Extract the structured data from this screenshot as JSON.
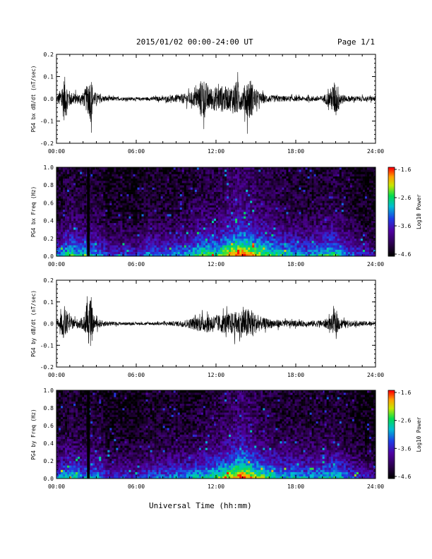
{
  "header": {
    "title": "2015/01/02  00:00-24:00 UT",
    "page": "Page 1/1"
  },
  "x_axis_label": "Universal Time (hh:mm)",
  "colors": {
    "trace": "#000000",
    "background": "#ffffff"
  },
  "chart_data": [
    {
      "type": "line",
      "ylabel": "PG4 bx dB/dt (nT/sec)",
      "xlim": [
        0,
        24
      ],
      "ylim": [
        -0.2,
        0.2
      ],
      "x_tick_labels": [
        "00:00",
        "06:00",
        "12:00",
        "18:00",
        "24:00"
      ],
      "y_tick_labels": [
        "0.2",
        "0.1",
        "0.0",
        "-0.1",
        "-0.2"
      ],
      "y_ticks": [
        0.2,
        0.1,
        0.0,
        -0.1,
        -0.2
      ],
      "envelope": {
        "hours": [
          0,
          0.3,
          0.6,
          1.0,
          1.5,
          2.0,
          2.5,
          2.6,
          2.8,
          3.5,
          4.5,
          6,
          7,
          8,
          9,
          10,
          10.5,
          11,
          11.5,
          12,
          12.5,
          13,
          13.5,
          14,
          14.5,
          15,
          15.5,
          16,
          17,
          18,
          19,
          20,
          20.5,
          21,
          21.3,
          21.6,
          22,
          23,
          24
        ],
        "amplitude": [
          0.02,
          0.08,
          0.19,
          0.06,
          0.04,
          0.05,
          0.16,
          0.2,
          0.06,
          0.025,
          0.015,
          0.012,
          0.015,
          0.02,
          0.03,
          0.05,
          0.07,
          0.19,
          0.09,
          0.1,
          0.11,
          0.09,
          0.15,
          0.08,
          0.19,
          0.07,
          0.04,
          0.03,
          0.025,
          0.02,
          0.02,
          0.025,
          0.06,
          0.16,
          0.08,
          0.03,
          0.025,
          0.02,
          0.02
        ]
      }
    },
    {
      "type": "heatmap",
      "ylabel": "PG4 bx Freq (Hz)",
      "colorbar_label": "Log10 Power",
      "colorbar_ticks": [
        "-1.6",
        "-2.6",
        "-3.6",
        "-4.6"
      ],
      "colorbar_range": [
        -4.6,
        -1.6
      ],
      "xlim": [
        0,
        24
      ],
      "ylim": [
        0,
        1.0
      ],
      "x_tick_labels": [
        "00:00",
        "06:00",
        "12:00",
        "18:00",
        "24:00"
      ],
      "y_tick_labels": [
        "1.0",
        "0.8",
        "0.6",
        "0.4",
        "0.2",
        "0.0"
      ],
      "y_ticks": [
        1.0,
        0.8,
        0.6,
        0.4,
        0.2,
        0.0
      ],
      "data_gap_hours": [
        2.3,
        2.5
      ],
      "activity": {
        "hours": [
          0,
          1,
          2,
          3,
          4,
          5,
          6,
          7,
          8,
          9,
          10,
          11,
          12,
          13,
          14,
          15,
          16,
          17,
          18,
          19,
          20,
          21,
          22,
          23,
          24
        ],
        "level": [
          0.5,
          0.7,
          0.6,
          0.6,
          0.4,
          0.45,
          0.4,
          0.55,
          0.5,
          0.55,
          0.6,
          0.75,
          0.7,
          0.9,
          1.0,
          0.85,
          0.75,
          0.65,
          0.6,
          0.55,
          0.65,
          0.7,
          0.5,
          0.4,
          0.35
        ]
      }
    },
    {
      "type": "line",
      "ylabel": "PG4 by dB/dt (nT/sec)",
      "xlim": [
        0,
        24
      ],
      "ylim": [
        -0.2,
        0.2
      ],
      "x_tick_labels": [
        "00:00",
        "06:00",
        "12:00",
        "18:00",
        "24:00"
      ],
      "y_tick_labels": [
        "0.2",
        "0.1",
        "0.0",
        "-0.1",
        "-0.2"
      ],
      "y_ticks": [
        0.2,
        0.1,
        0.0,
        -0.1,
        -0.2
      ],
      "envelope": {
        "hours": [
          0,
          0.3,
          0.6,
          1.0,
          1.5,
          2.0,
          2.5,
          2.6,
          2.8,
          3.5,
          4.5,
          6,
          7,
          8,
          9,
          10,
          10.5,
          11,
          11.5,
          12,
          12.5,
          13,
          13.5,
          14,
          14.5,
          15,
          15.5,
          16,
          17,
          18,
          19,
          20,
          20.5,
          21,
          21.3,
          21.6,
          22,
          23,
          24
        ],
        "amplitude": [
          0.02,
          0.07,
          0.15,
          0.05,
          0.04,
          0.05,
          0.2,
          0.2,
          0.05,
          0.025,
          0.015,
          0.01,
          0.012,
          0.015,
          0.02,
          0.04,
          0.06,
          0.07,
          0.08,
          0.07,
          0.08,
          0.09,
          0.1,
          0.12,
          0.13,
          0.08,
          0.05,
          0.04,
          0.03,
          0.025,
          0.025,
          0.03,
          0.05,
          0.1,
          0.05,
          0.03,
          0.025,
          0.02,
          0.02
        ]
      }
    },
    {
      "type": "heatmap",
      "ylabel": "PG4 by Freq (Hz)",
      "colorbar_label": "Log10 Power",
      "colorbar_ticks": [
        "-1.6",
        "-2.6",
        "-3.6",
        "-4.6"
      ],
      "colorbar_range": [
        -4.6,
        -1.6
      ],
      "xlim": [
        0,
        24
      ],
      "ylim": [
        0,
        1.0
      ],
      "x_tick_labels": [
        "00:00",
        "06:00",
        "12:00",
        "18:00",
        "24:00"
      ],
      "y_tick_labels": [
        "1.0",
        "0.8",
        "0.6",
        "0.4",
        "0.2",
        "0.0"
      ],
      "y_ticks": [
        1.0,
        0.8,
        0.6,
        0.4,
        0.2,
        0.0
      ],
      "data_gap_hours": [
        2.3,
        2.5
      ],
      "activity": {
        "hours": [
          0,
          1,
          2,
          3,
          4,
          5,
          6,
          7,
          8,
          9,
          10,
          11,
          12,
          13,
          14,
          15,
          16,
          17,
          18,
          19,
          20,
          21,
          22,
          23,
          24
        ],
        "level": [
          0.5,
          0.65,
          0.55,
          0.6,
          0.4,
          0.45,
          0.4,
          0.5,
          0.5,
          0.55,
          0.55,
          0.65,
          0.7,
          0.85,
          1.0,
          0.8,
          0.7,
          0.6,
          0.6,
          0.55,
          0.6,
          0.65,
          0.5,
          0.4,
          0.35
        ]
      }
    }
  ]
}
